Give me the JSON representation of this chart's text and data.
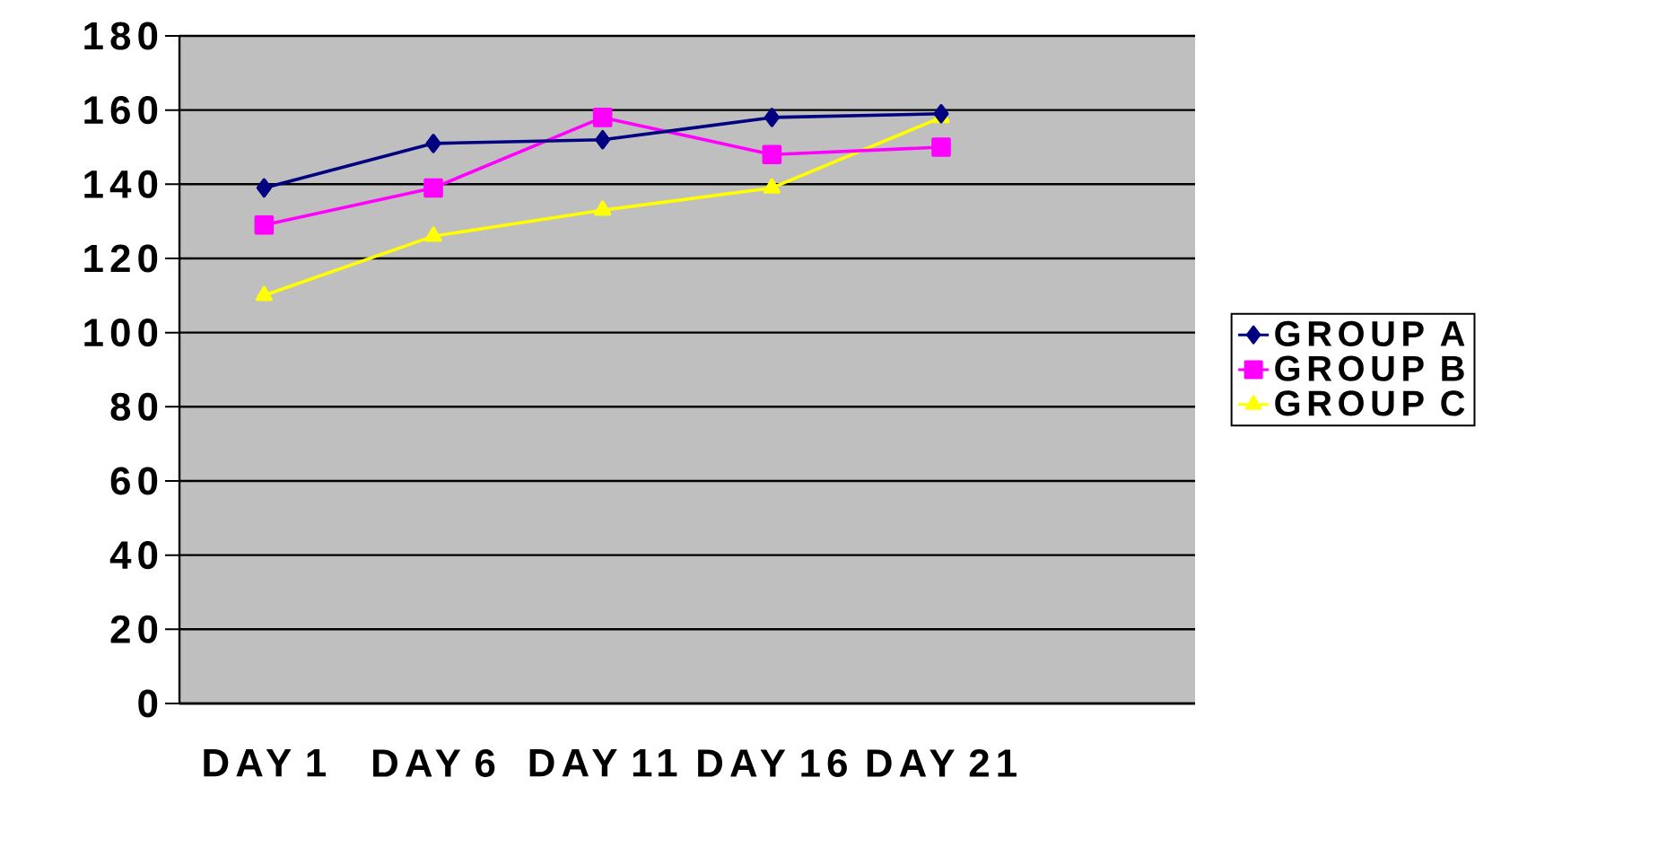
{
  "chart_data": {
    "type": "line",
    "categories": [
      "DAY 1",
      "DAY 6",
      "DAY 11",
      "DAY 16",
      "DAY 21",
      null
    ],
    "series": [
      {
        "name": "GROUP A",
        "color": "#000080",
        "marker": "diamond",
        "values": [
          139,
          151,
          152,
          158,
          159,
          null
        ]
      },
      {
        "name": "GROUP B",
        "color": "#ff00ff",
        "marker": "square",
        "values": [
          129,
          139,
          158,
          148,
          150,
          null
        ]
      },
      {
        "name": "GROUP C",
        "color": "#ffff00",
        "marker": "triangle",
        "values": [
          110,
          126,
          133,
          139,
          158,
          null
        ]
      }
    ],
    "ylim": [
      0,
      180
    ],
    "yticks": [
      0,
      20,
      40,
      60,
      80,
      100,
      120,
      140,
      160,
      180
    ],
    "grid": "y",
    "legend": "right",
    "line_style": "solid"
  }
}
